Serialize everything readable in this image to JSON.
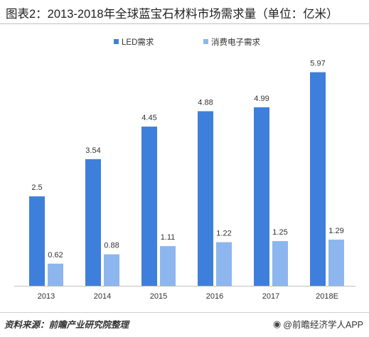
{
  "title": "图表2：2013-2018年全球蓝宝石材料市场需求量（单位：亿米）",
  "footer": {
    "source": "资料来源：前瞻产业研究院整理",
    "brand_icon": "at-icon",
    "brand": "@前瞻经济学人APP"
  },
  "colors": {
    "led": "#3f7fdc",
    "consumer": "#8db6ef"
  },
  "chart_data": {
    "type": "bar",
    "title": "图表2：2013-2018年全球蓝宝石材料市场需求量（单位：亿米）",
    "xlabel": "",
    "ylabel": "",
    "categories": [
      "2013",
      "2014",
      "2015",
      "2016",
      "2017",
      "2018E"
    ],
    "series": [
      {
        "name": "LED需求",
        "values": [
          2.5,
          3.54,
          4.45,
          4.88,
          4.99,
          5.97
        ],
        "labels": [
          "2.5",
          "3.54",
          "4.45",
          "4.88",
          "4.99",
          "5.97"
        ]
      },
      {
        "name": "消费电子需求",
        "values": [
          0.62,
          0.88,
          1.11,
          1.22,
          1.25,
          1.29
        ],
        "labels": [
          "0.62",
          "0.88",
          "1.11",
          "1.22",
          "1.25",
          "1.29"
        ]
      }
    ],
    "ylim": [
      0,
      6.2
    ],
    "grid": false,
    "legend": "top-center"
  }
}
